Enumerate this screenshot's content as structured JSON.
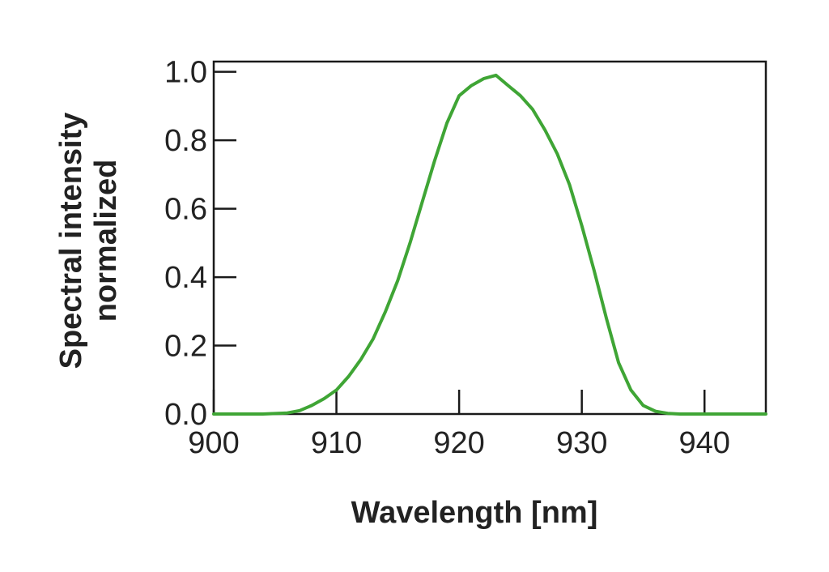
{
  "chart_data": {
    "type": "line",
    "title": "",
    "xlabel": "Wavelength [nm]",
    "ylabel_lines": [
      "Spectral intensity",
      "normalized"
    ],
    "xlim": [
      900,
      945
    ],
    "ylim": [
      0,
      1.03
    ],
    "x_ticks": [
      900,
      910,
      920,
      930,
      940
    ],
    "x_tick_labels": [
      "900",
      "910",
      "920",
      "930",
      "940"
    ],
    "y_ticks": [
      0,
      0.2,
      0.4,
      0.6,
      0.8,
      1.0
    ],
    "y_tick_labels": [
      "0.0",
      "0.2",
      "0.4",
      "0.6",
      "0.8",
      "1.0"
    ],
    "grid": false,
    "series": [
      {
        "color": "#3fa535",
        "x": [
          900,
          902,
          904,
          906,
          907,
          908,
          909,
          910,
          911,
          912,
          913,
          914,
          915,
          916,
          917,
          918,
          919,
          920,
          921,
          922,
          923,
          924,
          925,
          926,
          927,
          928,
          929,
          930,
          931,
          932,
          933,
          934,
          935,
          936,
          937,
          938,
          940,
          942,
          945
        ],
        "y": [
          0.0,
          0.0,
          0.0,
          0.003,
          0.01,
          0.025,
          0.045,
          0.07,
          0.11,
          0.16,
          0.22,
          0.3,
          0.39,
          0.5,
          0.62,
          0.74,
          0.85,
          0.93,
          0.96,
          0.98,
          0.99,
          0.96,
          0.93,
          0.89,
          0.83,
          0.76,
          0.67,
          0.55,
          0.42,
          0.28,
          0.15,
          0.07,
          0.025,
          0.008,
          0.002,
          0.0,
          0.0,
          0.0,
          0.0
        ]
      }
    ]
  }
}
